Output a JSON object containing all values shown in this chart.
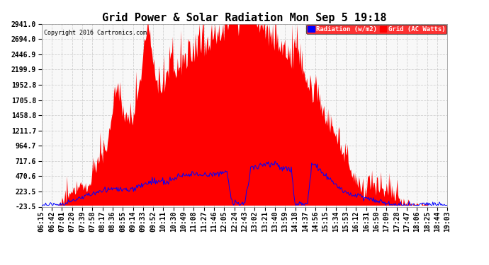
{
  "title": "Grid Power & Solar Radiation Mon Sep 5 19:18",
  "copyright": "Copyright 2016 Cartronics.com",
  "legend_radiation": "Radiation (w/m2)",
  "legend_grid": "Grid (AC Watts)",
  "yticks": [
    2941.0,
    2694.0,
    2446.9,
    2199.9,
    1952.8,
    1705.8,
    1458.8,
    1211.7,
    964.7,
    717.6,
    470.6,
    223.5,
    -23.5
  ],
  "ymin": -23.5,
  "ymax": 2941.0,
  "bg_color": "#ffffff",
  "plot_bg_color": "#f8f8f8",
  "grid_color": "#cccccc",
  "red_fill_color": "#ff0000",
  "blue_line_color": "#0000ff",
  "title_fontsize": 11,
  "axis_fontsize": 7,
  "xtick_labels": [
    "06:15",
    "06:42",
    "07:01",
    "07:20",
    "07:39",
    "07:58",
    "08:17",
    "08:36",
    "08:55",
    "09:14",
    "09:33",
    "09:52",
    "10:11",
    "10:30",
    "10:49",
    "11:08",
    "11:27",
    "11:46",
    "12:05",
    "12:24",
    "12:43",
    "13:02",
    "13:21",
    "13:40",
    "13:59",
    "14:18",
    "14:37",
    "14:56",
    "15:15",
    "15:34",
    "15:53",
    "16:12",
    "16:31",
    "16:50",
    "17:09",
    "17:28",
    "17:47",
    "18:06",
    "18:25",
    "18:44",
    "19:03"
  ],
  "num_points": 500
}
